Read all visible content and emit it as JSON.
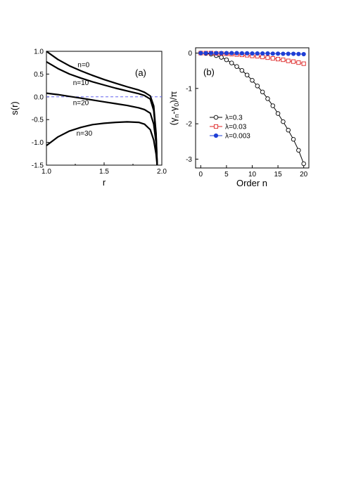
{
  "chart_data": [
    {
      "type": "line",
      "panel_label": "(a)",
      "xlabel": "r",
      "ylabel": "s(r)",
      "xlim": [
        1.0,
        2.0
      ],
      "ylim": [
        -1.5,
        1.0
      ],
      "xticks": [
        "1.0",
        "1.5",
        "2.0"
      ],
      "yticks": [
        "-1.5",
        "-1.0",
        "-0.5",
        "0.0",
        "0.5",
        "1.0"
      ],
      "reference_line": {
        "y": 0,
        "style": "dashed",
        "color": "#6666ee"
      },
      "series": [
        {
          "name": "n=0",
          "x": [
            1.0,
            1.1,
            1.2,
            1.3,
            1.4,
            1.5,
            1.6,
            1.7,
            1.8,
            1.85,
            1.9,
            1.93,
            1.95,
            1.96
          ],
          "y": [
            1.0,
            0.82,
            0.68,
            0.57,
            0.47,
            0.38,
            0.3,
            0.22,
            0.15,
            0.1,
            0.02,
            -0.2,
            -0.8,
            -1.5
          ]
        },
        {
          "name": "n=10",
          "x": [
            1.0,
            1.1,
            1.2,
            1.3,
            1.4,
            1.5,
            1.6,
            1.7,
            1.8,
            1.85,
            1.9,
            1.93,
            1.95,
            1.96
          ],
          "y": [
            0.77,
            0.62,
            0.5,
            0.41,
            0.33,
            0.26,
            0.19,
            0.13,
            0.07,
            0.03,
            -0.05,
            -0.3,
            -0.85,
            -1.5
          ]
        },
        {
          "name": "n=20",
          "x": [
            1.0,
            1.1,
            1.2,
            1.3,
            1.4,
            1.5,
            1.6,
            1.7,
            1.8,
            1.85,
            1.9,
            1.93,
            1.95,
            1.96
          ],
          "y": [
            0.08,
            0.05,
            0.01,
            -0.03,
            -0.07,
            -0.11,
            -0.15,
            -0.19,
            -0.24,
            -0.28,
            -0.36,
            -0.6,
            -1.0,
            -1.5
          ]
        },
        {
          "name": "n=30",
          "x": [
            1.0,
            1.1,
            1.2,
            1.3,
            1.4,
            1.5,
            1.6,
            1.7,
            1.8,
            1.85,
            1.9,
            1.93,
            1.95,
            1.96
          ],
          "y": [
            -1.07,
            -0.88,
            -0.75,
            -0.67,
            -0.61,
            -0.58,
            -0.56,
            -0.55,
            -0.56,
            -0.6,
            -0.72,
            -0.95,
            -1.25,
            -1.5
          ]
        }
      ],
      "curve_labels": [
        {
          "text": "n=0",
          "x": 1.27,
          "y": 0.65
        },
        {
          "text": "n=10",
          "x": 1.23,
          "y": 0.26
        },
        {
          "text": "n=20",
          "x": 1.23,
          "y": -0.18
        },
        {
          "text": "n=30",
          "x": 1.26,
          "y": -0.85
        }
      ]
    },
    {
      "type": "line",
      "panel_label": "(b)",
      "xlabel": "Order n",
      "ylabel": "(γn-γ0)/π",
      "ylabel_parts": {
        "open": "(γ",
        "sub1": "n",
        "mid": "-γ",
        "sub2": "0",
        "close": ")/π"
      },
      "xlim": [
        -1,
        21
      ],
      "ylim": [
        -3.25,
        0.15
      ],
      "xticks": [
        "0",
        "5",
        "10",
        "15",
        "20"
      ],
      "yticks": [
        "0",
        "-1",
        "-2",
        "-3"
      ],
      "legend_position": "lower-left",
      "series": [
        {
          "name": "λ=0.3",
          "color": "#000000",
          "marker": "open-circle",
          "x": [
            0,
            1,
            2,
            3,
            4,
            5,
            6,
            7,
            8,
            9,
            10,
            11,
            12,
            13,
            14,
            15,
            16,
            17,
            18,
            19,
            20
          ],
          "y": [
            0.0,
            -0.01,
            -0.03,
            -0.07,
            -0.12,
            -0.19,
            -0.28,
            -0.38,
            -0.49,
            -0.62,
            -0.77,
            -0.93,
            -1.1,
            -1.29,
            -1.49,
            -1.71,
            -1.94,
            -2.18,
            -2.44,
            -2.75,
            -3.13
          ]
        },
        {
          "name": "λ=0.03",
          "color": "#dd2222",
          "marker": "open-square",
          "x": [
            0,
            1,
            2,
            3,
            4,
            5,
            6,
            7,
            8,
            9,
            10,
            11,
            12,
            13,
            14,
            15,
            16,
            17,
            18,
            19,
            20
          ],
          "y": [
            0.0,
            0.0,
            0.0,
            -0.01,
            -0.01,
            -0.02,
            -0.03,
            -0.04,
            -0.05,
            -0.06,
            -0.08,
            -0.09,
            -0.11,
            -0.13,
            -0.15,
            -0.17,
            -0.19,
            -0.22,
            -0.24,
            -0.27,
            -0.3
          ]
        },
        {
          "name": "λ=0.003",
          "color": "#1f3fd6",
          "marker": "filled-circle",
          "x": [
            0,
            1,
            2,
            3,
            4,
            5,
            6,
            7,
            8,
            9,
            10,
            11,
            12,
            13,
            14,
            15,
            16,
            17,
            18,
            19,
            20
          ],
          "y": [
            0.0,
            0.0,
            0.0,
            0.0,
            0.0,
            0.0,
            0.0,
            0.0,
            -0.005,
            -0.005,
            -0.01,
            -0.01,
            -0.01,
            -0.01,
            -0.015,
            -0.015,
            -0.02,
            -0.02,
            -0.02,
            -0.025,
            -0.03
          ]
        }
      ]
    }
  ]
}
